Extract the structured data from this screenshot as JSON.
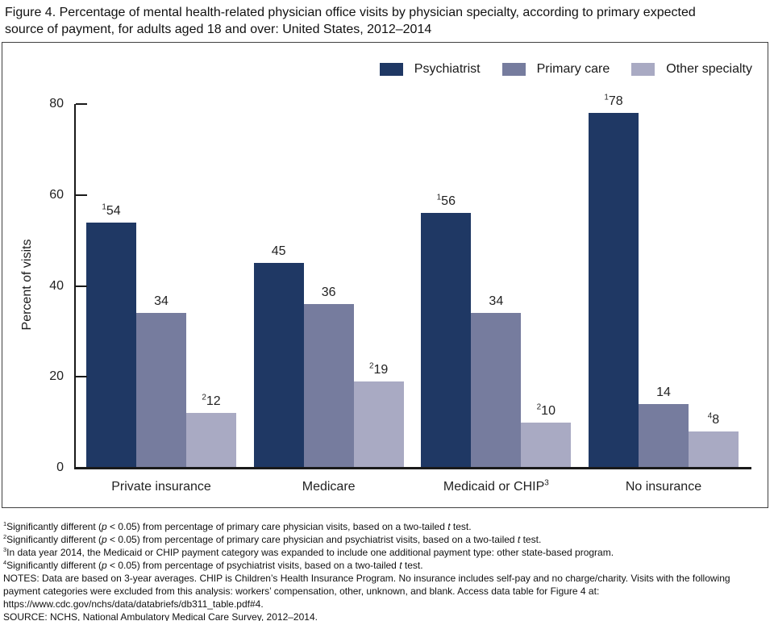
{
  "header": {
    "lines": [
      "Figure 4. Percentage of mental health-related physician office visits by physician specialty, according to primary expected",
      "source of payment, for adults aged 18 and over: United States, 2012–2014"
    ]
  },
  "chart_data": {
    "type": "bar",
    "title": "Figure 4. Percentage of mental health-related physician office visits by physician specialty, according to primary expected source of payment, for adults aged 18 and over: United States, 2012–2014",
    "xlabel": "",
    "ylabel": "Percent of visits",
    "ylim": [
      0,
      80
    ],
    "yticks": [
      0,
      20,
      40,
      60,
      80
    ],
    "grid": false,
    "legend_position": "top-right",
    "categories": [
      "Private insurance",
      "Medicare",
      "Medicaid or CHIP³",
      "No insurance"
    ],
    "categories_rich": [
      [
        {
          "t": "Private insurance"
        }
      ],
      [
        {
          "t": "Medicare"
        }
      ],
      [
        {
          "t": "Medicaid or CHIP"
        },
        {
          "t": "3",
          "sup": true
        }
      ],
      [
        {
          "t": "No insurance"
        }
      ]
    ],
    "series": [
      {
        "name": "Psychiatrist",
        "color": "#1f3864",
        "values": [
          54,
          45,
          56,
          78
        ],
        "bar_labels": [
          [
            {
              "t": "1",
              "sup": true
            },
            {
              "t": "54"
            }
          ],
          [
            {
              "t": "45"
            }
          ],
          [
            {
              "t": "1",
              "sup": true
            },
            {
              "t": "56"
            }
          ],
          [
            {
              "t": "1",
              "sup": true
            },
            {
              "t": "78"
            }
          ]
        ]
      },
      {
        "name": "Primary care",
        "color": "#767c9e",
        "values": [
          34,
          36,
          34,
          14
        ],
        "bar_labels": [
          [
            {
              "t": "34"
            }
          ],
          [
            {
              "t": "36"
            }
          ],
          [
            {
              "t": "34"
            }
          ],
          [
            {
              "t": "14"
            }
          ]
        ]
      },
      {
        "name": "Other specialty",
        "color": "#a9aac3",
        "values": [
          12,
          19,
          10,
          8
        ],
        "bar_labels": [
          [
            {
              "t": "2",
              "sup": true
            },
            {
              "t": "12"
            }
          ],
          [
            {
              "t": "2",
              "sup": true
            },
            {
              "t": "19"
            }
          ],
          [
            {
              "t": "2",
              "sup": true
            },
            {
              "t": "10"
            }
          ],
          [
            {
              "t": "4",
              "sup": true
            },
            {
              "t": "8"
            }
          ]
        ]
      }
    ]
  },
  "footer": {
    "footnotes": [
      {
        "parts": [
          {
            "t": "1",
            "sup": true
          },
          {
            "t": "Significantly different ("
          },
          {
            "t": "p",
            "i": true
          },
          {
            "t": " < 0.05) from percentage of primary care physician visits, based on a two-tailed "
          },
          {
            "t": "t",
            "i": true
          },
          {
            "t": " test."
          }
        ]
      },
      {
        "parts": [
          {
            "t": "2",
            "sup": true
          },
          {
            "t": "Significantly different ("
          },
          {
            "t": "p",
            "i": true
          },
          {
            "t": " < 0.05) from percentage of primary care physician and psychiatrist visits, based on a two-tailed "
          },
          {
            "t": "t",
            "i": true
          },
          {
            "t": " test."
          }
        ]
      },
      {
        "parts": [
          {
            "t": "3",
            "sup": true
          },
          {
            "t": "In data year 2014, the Medicaid or CHIP payment category was expanded to include one additional payment type: other state-based program."
          }
        ]
      },
      {
        "parts": [
          {
            "t": "4",
            "sup": true
          },
          {
            "t": "Significantly different ("
          },
          {
            "t": "p",
            "i": true
          },
          {
            "t": " < 0.05) from percentage of psychiatrist visits, based on a two-tailed "
          },
          {
            "t": "t",
            "i": true
          },
          {
            "t": " test."
          }
        ]
      }
    ],
    "notes": "NOTES: Data are based on 3-year averages. CHIP is Children’s Health Insurance Program. No insurance includes self-pay and no charge/charity. Visits with the following payment categories were excluded from this analysis: workers’ compensation, other, unknown, and blank. Access data table for Figure 4 at: https://www.cdc.gov/nchs/data/databriefs/db311_table.pdf#4.",
    "source": "SOURCE: NCHS, National Ambulatory Medical Care Survey, 2012–2014."
  }
}
